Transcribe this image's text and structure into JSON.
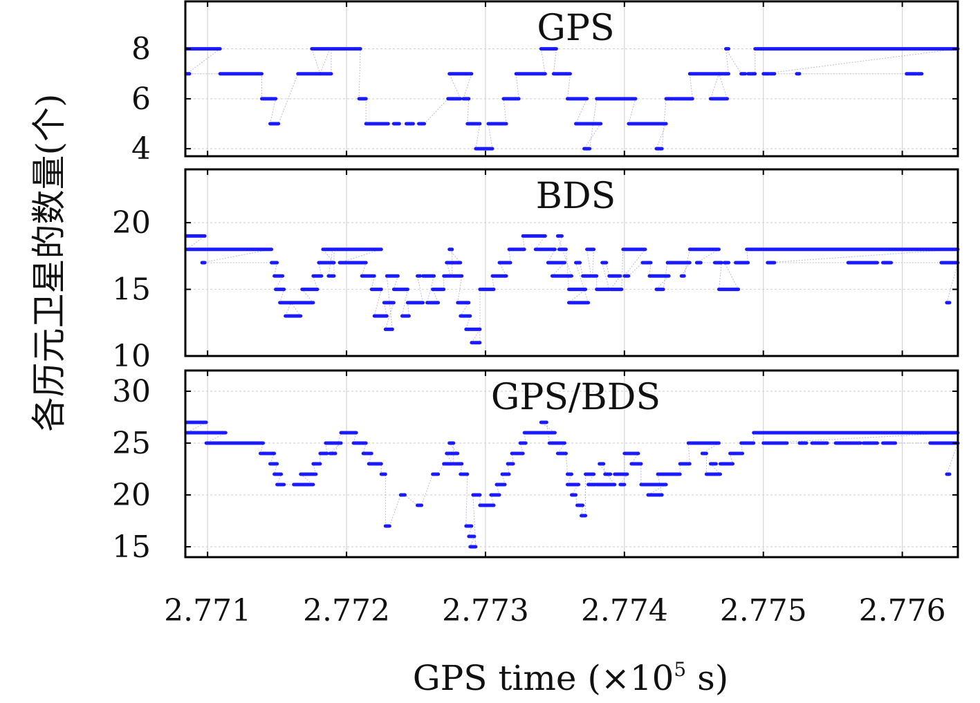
{
  "figure": {
    "y_axis_label": "各历元卫星的数量(个)",
    "x_axis_label_prefix": "GPS time (×10",
    "x_axis_label_exponent": "5",
    "x_axis_label_suffix": " s)"
  },
  "colors": {
    "series": "#1a1aff",
    "connector": "#b8b8d8",
    "grid": "#d4d4d4",
    "frame": "#000000"
  },
  "chart_data": [
    {
      "type": "scatter",
      "title": "GPS",
      "x_ticks": [
        "2.771",
        "2.772",
        "2.773",
        "2.774",
        "2.775",
        "2.776"
      ],
      "x_tick_values": [
        2.771,
        2.772,
        2.773,
        2.774,
        2.775,
        2.776
      ],
      "xlim": [
        2.77084,
        2.7764
      ],
      "y_ticks": [
        "4",
        "6",
        "8"
      ],
      "y_tick_values": [
        4,
        6,
        8
      ],
      "ylim": [
        3.7,
        9.9
      ],
      "grid": true,
      "segments": [
        [
          2.77085,
          2.77109,
          8
        ],
        [
          2.77085,
          2.77086,
          7
        ],
        [
          2.77109,
          2.77139,
          7
        ],
        [
          2.77139,
          2.77149,
          6
        ],
        [
          2.77145,
          2.77151,
          5
        ],
        [
          2.77165,
          2.77181,
          7
        ],
        [
          2.77175,
          2.77188,
          8
        ],
        [
          2.77181,
          2.77189,
          7
        ],
        [
          2.77189,
          2.7721,
          8
        ],
        [
          2.77209,
          2.77214,
          6
        ],
        [
          2.77214,
          2.7723,
          5
        ],
        [
          2.77234,
          2.77238,
          5
        ],
        [
          2.77243,
          2.77248,
          5
        ],
        [
          2.77252,
          2.77256,
          5
        ],
        [
          2.77274,
          2.7729,
          7
        ],
        [
          2.77273,
          2.77282,
          6
        ],
        [
          2.77284,
          2.77288,
          6
        ],
        [
          2.77287,
          2.77296,
          5
        ],
        [
          2.77293,
          2.77305,
          4
        ],
        [
          2.77302,
          2.77315,
          5
        ],
        [
          2.77313,
          2.77324,
          6
        ],
        [
          2.77322,
          2.77343,
          7
        ],
        [
          2.7734,
          2.77351,
          8
        ],
        [
          2.77349,
          2.77361,
          7
        ],
        [
          2.77359,
          2.77373,
          6
        ],
        [
          2.77365,
          2.77383,
          5
        ],
        [
          2.77371,
          2.77375,
          4
        ],
        [
          2.7738,
          2.77408,
          6
        ],
        [
          2.77403,
          2.7743,
          5
        ],
        [
          2.77423,
          2.77427,
          4
        ],
        [
          2.7743,
          2.77435,
          6
        ],
        [
          2.77436,
          2.77449,
          6
        ],
        [
          2.77447,
          2.77468,
          7
        ],
        [
          2.77462,
          2.77474,
          6
        ],
        [
          2.77468,
          2.77475,
          7
        ],
        [
          2.77473,
          2.77473,
          8
        ],
        [
          2.77484,
          2.77487,
          7
        ],
        [
          2.77489,
          2.77494,
          7
        ],
        [
          2.77494,
          2.7764,
          8
        ],
        [
          2.775,
          2.77504,
          7
        ],
        [
          2.77505,
          2.77508,
          7
        ],
        [
          2.77524,
          2.77526,
          7
        ],
        [
          2.77603,
          2.7761,
          7
        ],
        [
          2.77611,
          2.77614,
          7
        ]
      ]
    },
    {
      "type": "scatter",
      "title": "BDS",
      "x_ticks": [
        "2.771",
        "2.772",
        "2.773",
        "2.774",
        "2.775",
        "2.776"
      ],
      "x_tick_values": [
        2.771,
        2.772,
        2.773,
        2.774,
        2.775,
        2.776
      ],
      "xlim": [
        2.77084,
        2.7764
      ],
      "y_ticks": [
        "10",
        "15",
        "20"
      ],
      "y_tick_values": [
        10,
        15,
        20
      ],
      "ylim": [
        10,
        24
      ],
      "grid": true,
      "segments": [
        [
          2.77085,
          2.77098,
          19
        ],
        [
          2.77085,
          2.77146,
          18
        ],
        [
          2.77096,
          2.77098,
          17
        ],
        [
          2.77146,
          2.7715,
          17
        ],
        [
          2.77148,
          2.77154,
          16
        ],
        [
          2.77149,
          2.77155,
          15
        ],
        [
          2.77152,
          2.7716,
          14
        ],
        [
          2.77156,
          2.77167,
          13
        ],
        [
          2.7716,
          2.77176,
          14
        ],
        [
          2.77168,
          2.77179,
          15
        ],
        [
          2.77176,
          2.77182,
          16
        ],
        [
          2.7718,
          2.77191,
          17
        ],
        [
          2.77183,
          2.7719,
          18
        ],
        [
          2.77187,
          2.77191,
          16
        ],
        [
          2.77191,
          2.77225,
          18
        ],
        [
          2.77195,
          2.772,
          17
        ],
        [
          2.77201,
          2.77214,
          17
        ],
        [
          2.77211,
          2.7722,
          16
        ],
        [
          2.77218,
          2.77225,
          15
        ],
        [
          2.7722,
          2.77229,
          13
        ],
        [
          2.77227,
          2.77234,
          14
        ],
        [
          2.77228,
          2.77233,
          12
        ],
        [
          2.77229,
          2.77237,
          16
        ],
        [
          2.77234,
          2.77244,
          15
        ],
        [
          2.7724,
          2.77245,
          13
        ],
        [
          2.77244,
          2.77255,
          14
        ],
        [
          2.77251,
          2.77253,
          16
        ],
        [
          2.77255,
          2.77263,
          16
        ],
        [
          2.77258,
          2.77266,
          14
        ],
        [
          2.77262,
          2.7727,
          15
        ],
        [
          2.7727,
          2.77275,
          16
        ],
        [
          2.77272,
          2.77282,
          17
        ],
        [
          2.77274,
          2.77276,
          18
        ],
        [
          2.77276,
          2.77283,
          16
        ],
        [
          2.7728,
          2.77288,
          14
        ],
        [
          2.77282,
          2.77289,
          13
        ],
        [
          2.77286,
          2.77296,
          12
        ],
        [
          2.7729,
          2.77296,
          11
        ],
        [
          2.77296,
          2.77306,
          15
        ],
        [
          2.77305,
          2.77315,
          16
        ],
        [
          2.7731,
          2.77318,
          17
        ],
        [
          2.77317,
          2.77328,
          18
        ],
        [
          2.77327,
          2.77343,
          19
        ],
        [
          2.77336,
          2.7735,
          18
        ],
        [
          2.77345,
          2.77357,
          17
        ],
        [
          2.77348,
          2.77362,
          16
        ],
        [
          2.77352,
          2.77355,
          19
        ],
        [
          2.77353,
          2.77358,
          18
        ],
        [
          2.7736,
          2.77372,
          15
        ],
        [
          2.7736,
          2.77374,
          14
        ],
        [
          2.77365,
          2.77368,
          17
        ],
        [
          2.7737,
          2.77376,
          16
        ],
        [
          2.77373,
          2.77378,
          18
        ],
        [
          2.77377,
          2.7738,
          16
        ],
        [
          2.7738,
          2.77389,
          15
        ],
        [
          2.77384,
          2.77387,
          17
        ],
        [
          2.77389,
          2.77397,
          16
        ],
        [
          2.7739,
          2.77398,
          15
        ],
        [
          2.77399,
          2.77415,
          18
        ],
        [
          2.774,
          2.77403,
          16
        ],
        [
          2.77413,
          2.77419,
          17
        ],
        [
          2.77418,
          2.77432,
          16
        ],
        [
          2.77423,
          2.77428,
          15
        ],
        [
          2.77431,
          2.77447,
          17
        ],
        [
          2.77441,
          2.77443,
          16
        ],
        [
          2.77447,
          2.77468,
          18
        ],
        [
          2.77452,
          2.77455,
          17
        ],
        [
          2.77465,
          2.7747,
          17
        ],
        [
          2.77468,
          2.77482,
          15
        ],
        [
          2.77472,
          2.77475,
          17
        ],
        [
          2.7748,
          2.77489,
          17
        ],
        [
          2.77488,
          2.7764,
          18
        ],
        [
          2.77503,
          2.77508,
          17
        ],
        [
          2.77561,
          2.77582,
          17
        ],
        [
          2.77586,
          2.77592,
          17
        ],
        [
          2.77628,
          2.7764,
          17
        ],
        [
          2.77632,
          2.77634,
          14
        ]
      ]
    },
    {
      "type": "scatter",
      "title": "GPS/BDS",
      "x_ticks": [
        "2.771",
        "2.772",
        "2.773",
        "2.774",
        "2.775",
        "2.776"
      ],
      "x_tick_values": [
        2.771,
        2.772,
        2.773,
        2.774,
        2.775,
        2.776
      ],
      "xlim": [
        2.77084,
        2.7764
      ],
      "y_ticks": [
        "15",
        "20",
        "25",
        "30"
      ],
      "y_tick_values": [
        15,
        20,
        25,
        30
      ],
      "ylim": [
        14,
        32
      ],
      "grid": true,
      "segments": [
        [
          2.77085,
          2.77099,
          27
        ],
        [
          2.77085,
          2.77113,
          26
        ],
        [
          2.77099,
          2.7714,
          25
        ],
        [
          2.77138,
          2.77148,
          24
        ],
        [
          2.77145,
          2.7715,
          23
        ],
        [
          2.77148,
          2.77153,
          22
        ],
        [
          2.7715,
          2.77155,
          21
        ],
        [
          2.77162,
          2.77176,
          21
        ],
        [
          2.77167,
          2.77178,
          22
        ],
        [
          2.77176,
          2.77181,
          23
        ],
        [
          2.77181,
          2.77186,
          24
        ],
        [
          2.77185,
          2.77196,
          25
        ],
        [
          2.77188,
          2.77192,
          24
        ],
        [
          2.77196,
          2.77207,
          26
        ],
        [
          2.77205,
          2.77214,
          25
        ],
        [
          2.77212,
          2.77218,
          24
        ],
        [
          2.77216,
          2.77225,
          23
        ],
        [
          2.77225,
          2.77228,
          22
        ],
        [
          2.77228,
          2.77231,
          17
        ],
        [
          2.77239,
          2.77242,
          20
        ],
        [
          2.77251,
          2.77254,
          19
        ],
        [
          2.77262,
          2.77266,
          22
        ],
        [
          2.7727,
          2.77276,
          23
        ],
        [
          2.77272,
          2.7728,
          24
        ],
        [
          2.77274,
          2.77277,
          25
        ],
        [
          2.77277,
          2.77283,
          23
        ],
        [
          2.77282,
          2.77287,
          22
        ],
        [
          2.77286,
          2.7729,
          17
        ],
        [
          2.77288,
          2.77292,
          16
        ],
        [
          2.77289,
          2.77293,
          15
        ],
        [
          2.77291,
          2.77296,
          20
        ],
        [
          2.77296,
          2.77306,
          19
        ],
        [
          2.77304,
          2.7731,
          20
        ],
        [
          2.77308,
          2.77314,
          21
        ],
        [
          2.77312,
          2.77317,
          22
        ],
        [
          2.77316,
          2.7732,
          23
        ],
        [
          2.77319,
          2.77327,
          24
        ],
        [
          2.77325,
          2.77329,
          25
        ],
        [
          2.77328,
          2.7735,
          26
        ],
        [
          2.7734,
          2.77344,
          27
        ],
        [
          2.77346,
          2.77357,
          25
        ],
        [
          2.77352,
          2.77358,
          24
        ],
        [
          2.77359,
          2.77362,
          22
        ],
        [
          2.77359,
          2.77367,
          21
        ],
        [
          2.77362,
          2.77365,
          20
        ],
        [
          2.77366,
          2.7737,
          19
        ],
        [
          2.77369,
          2.77372,
          18
        ],
        [
          2.77372,
          2.77378,
          22
        ],
        [
          2.77374,
          2.77379,
          21
        ],
        [
          2.7738,
          2.77393,
          21
        ],
        [
          2.77382,
          2.77385,
          23
        ],
        [
          2.77386,
          2.7739,
          22
        ],
        [
          2.77393,
          2.77402,
          22
        ],
        [
          2.77397,
          2.774,
          21
        ],
        [
          2.774,
          2.7741,
          24
        ],
        [
          2.77405,
          2.77412,
          23
        ],
        [
          2.77412,
          2.7743,
          21
        ],
        [
          2.77417,
          2.77427,
          20
        ],
        [
          2.77424,
          2.77433,
          22
        ],
        [
          2.7743,
          2.7744,
          22
        ],
        [
          2.7744,
          2.77447,
          23
        ],
        [
          2.77446,
          2.77468,
          25
        ],
        [
          2.77456,
          2.77459,
          24
        ],
        [
          2.77459,
          2.77469,
          22
        ],
        [
          2.77462,
          2.77466,
          23
        ],
        [
          2.77469,
          2.77478,
          23
        ],
        [
          2.77476,
          2.77485,
          24
        ],
        [
          2.77484,
          2.77493,
          25
        ],
        [
          2.77493,
          2.7764,
          26
        ],
        [
          2.775,
          2.7751,
          25
        ],
        [
          2.7751,
          2.77517,
          25
        ],
        [
          2.77526,
          2.77531,
          25
        ],
        [
          2.77535,
          2.77546,
          25
        ],
        [
          2.77552,
          2.7757,
          25
        ],
        [
          2.77572,
          2.77582,
          25
        ],
        [
          2.77586,
          2.77595,
          25
        ],
        [
          2.7762,
          2.7764,
          25
        ],
        [
          2.77632,
          2.77634,
          22
        ]
      ]
    }
  ]
}
